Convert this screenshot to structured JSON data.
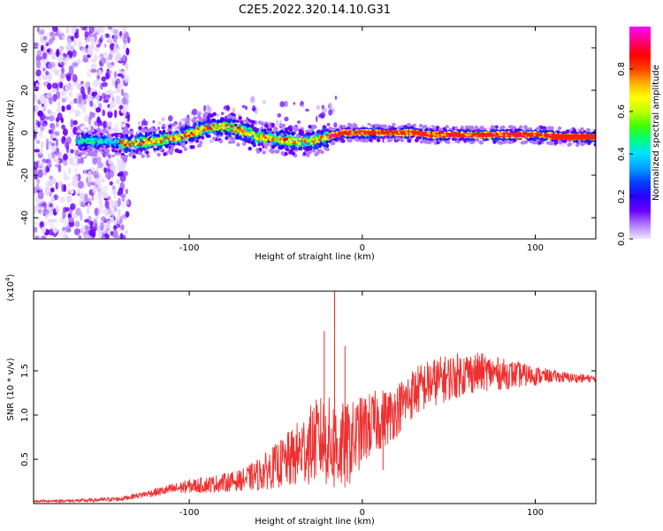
{
  "title": "C2E5.2022.320.14.10.G31",
  "chart_data": [
    {
      "type": "heatmap",
      "xlabel": "Height of straight line (km)",
      "ylabel": "Frequency (Hz)",
      "xlim": [
        -190,
        135
      ],
      "ylim": [
        -50,
        50
      ],
      "xticks": [
        -100,
        0,
        100
      ],
      "yticks": [
        -40,
        -20,
        0,
        20,
        40
      ],
      "grid": false,
      "trace_center": [
        {
          "x": -155,
          "y": -4
        },
        {
          "x": -135,
          "y": -5
        },
        {
          "x": -120,
          "y": -4
        },
        {
          "x": -105,
          "y": -2
        },
        {
          "x": -90,
          "y": 2
        },
        {
          "x": -80,
          "y": 3
        },
        {
          "x": -70,
          "y": 1
        },
        {
          "x": -60,
          "y": -2
        },
        {
          "x": -50,
          "y": -3
        },
        {
          "x": -40,
          "y": -4
        },
        {
          "x": -30,
          "y": -4
        },
        {
          "x": -20,
          "y": -2
        },
        {
          "x": -10,
          "y": 0
        },
        {
          "x": 0,
          "y": 0
        },
        {
          "x": 10,
          "y": 0
        },
        {
          "x": 20,
          "y": 0
        },
        {
          "x": 30,
          "y": 0
        },
        {
          "x": 40,
          "y": -1
        },
        {
          "x": 60,
          "y": -1
        },
        {
          "x": 80,
          "y": -1
        },
        {
          "x": 100,
          "y": -1
        },
        {
          "x": 120,
          "y": -2
        },
        {
          "x": 135,
          "y": -2
        }
      ],
      "colorbar": {
        "label": "Normalized spectral amplitude",
        "range": [
          0,
          1
        ],
        "ticks": [
          "0.0",
          "0.2",
          "0.4",
          "0.6",
          "0.8"
        ],
        "colors": [
          "#f0e6ff",
          "#b07cff",
          "#6a00ff",
          "#2a00ff",
          "#0040ff",
          "#00a0ff",
          "#00e0ff",
          "#00ff80",
          "#40ff00",
          "#c0ff00",
          "#ffff00",
          "#ffb000",
          "#ff4000",
          "#ff0000",
          "#ff0080",
          "#ff00ff"
        ]
      }
    },
    {
      "type": "line",
      "xlabel": "Height of straight line (km)",
      "ylabel": "SNR (10 * v/v)",
      "y_multiplier": "(x10^4)",
      "y_multiplier_parts": {
        "base": "(x10",
        "exp": "4",
        "close": ")"
      },
      "xlim": [
        -190,
        135
      ],
      "ylim": [
        0,
        2.4
      ],
      "xticks": [
        -100,
        0,
        100
      ],
      "yticks": [
        "0.5",
        "1.0",
        "1.5"
      ],
      "grid": false,
      "series": [
        {
          "color": "#ee3030",
          "envelope": [
            {
              "x": -190,
              "y": 0.03
            },
            {
              "x": -160,
              "y": 0.04
            },
            {
              "x": -140,
              "y": 0.06
            },
            {
              "x": -125,
              "y": 0.12
            },
            {
              "x": -110,
              "y": 0.18
            },
            {
              "x": -100,
              "y": 0.22
            },
            {
              "x": -90,
              "y": 0.24
            },
            {
              "x": -80,
              "y": 0.27
            },
            {
              "x": -70,
              "y": 0.3
            },
            {
              "x": -60,
              "y": 0.38
            },
            {
              "x": -50,
              "y": 0.5
            },
            {
              "x": -40,
              "y": 0.62
            },
            {
              "x": -35,
              "y": 0.72
            },
            {
              "x": -30,
              "y": 0.8
            },
            {
              "x": -25,
              "y": 0.88
            },
            {
              "x": -20,
              "y": 0.85
            },
            {
              "x": -15,
              "y": 0.8
            },
            {
              "x": -10,
              "y": 0.78
            },
            {
              "x": -5,
              "y": 0.85
            },
            {
              "x": 0,
              "y": 0.95
            },
            {
              "x": 5,
              "y": 1.0
            },
            {
              "x": 10,
              "y": 1.05
            },
            {
              "x": 15,
              "y": 1.08
            },
            {
              "x": 20,
              "y": 1.15
            },
            {
              "x": 30,
              "y": 1.35
            },
            {
              "x": 40,
              "y": 1.45
            },
            {
              "x": 50,
              "y": 1.5
            },
            {
              "x": 60,
              "y": 1.55
            },
            {
              "x": 70,
              "y": 1.55
            },
            {
              "x": 80,
              "y": 1.52
            },
            {
              "x": 90,
              "y": 1.5
            },
            {
              "x": 100,
              "y": 1.48
            },
            {
              "x": 110,
              "y": 1.46
            },
            {
              "x": 120,
              "y": 1.44
            },
            {
              "x": 135,
              "y": 1.42
            }
          ],
          "noise_amplitude": [
            {
              "x": -190,
              "y": 0.01
            },
            {
              "x": -130,
              "y": 0.03
            },
            {
              "x": -100,
              "y": 0.08
            },
            {
              "x": -70,
              "y": 0.12
            },
            {
              "x": -50,
              "y": 0.25
            },
            {
              "x": -30,
              "y": 0.45
            },
            {
              "x": -15,
              "y": 0.55
            },
            {
              "x": 0,
              "y": 0.4
            },
            {
              "x": 20,
              "y": 0.3
            },
            {
              "x": 40,
              "y": 0.28
            },
            {
              "x": 60,
              "y": 0.25
            },
            {
              "x": 90,
              "y": 0.15
            },
            {
              "x": 110,
              "y": 0.07
            },
            {
              "x": 135,
              "y": 0.04
            }
          ],
          "spikes": [
            {
              "x": -16,
              "y": 2.4
            },
            {
              "x": -22,
              "y": 1.95
            },
            {
              "x": -10,
              "y": 1.78
            },
            {
              "x": 12,
              "y": 0.38
            }
          ]
        }
      ]
    }
  ]
}
